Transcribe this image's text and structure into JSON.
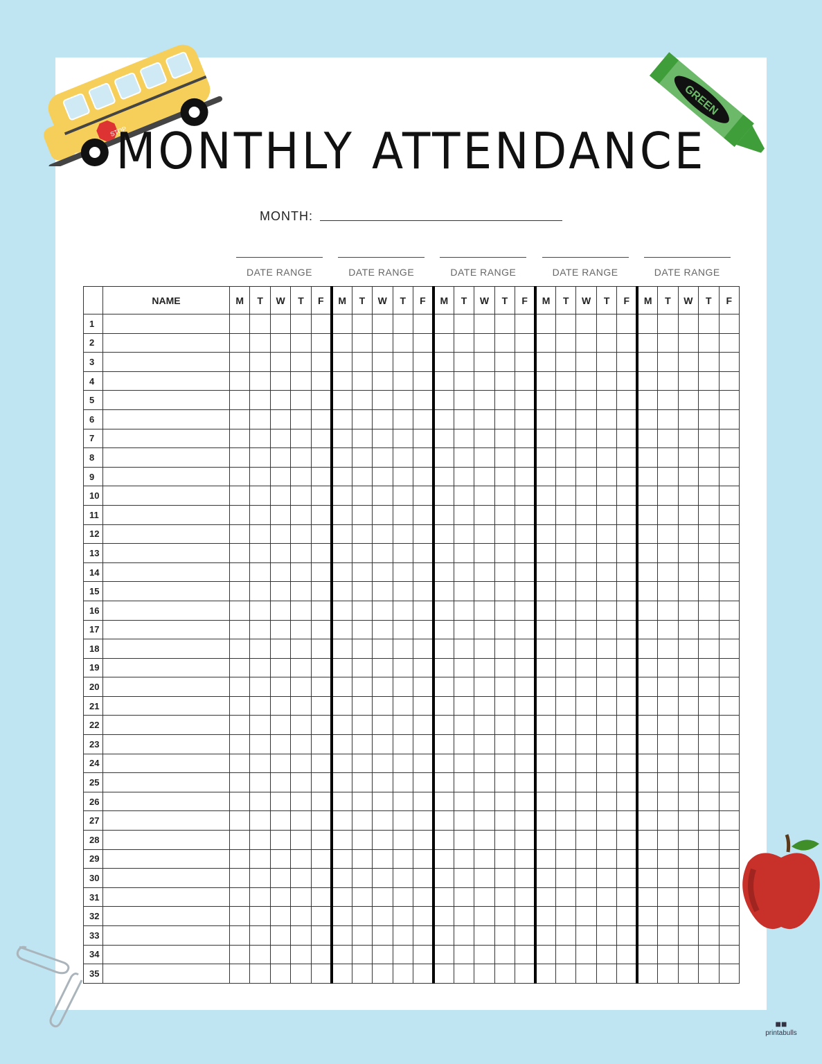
{
  "title": "MONTHLY ATTENDANCE",
  "month_label": "MONTH:",
  "date_range_label": "DATE RANGE",
  "weeks": 5,
  "header": {
    "number": "",
    "name": "NAME",
    "days": [
      "M",
      "T",
      "W",
      "T",
      "F"
    ]
  },
  "rows": [
    1,
    2,
    3,
    4,
    5,
    6,
    7,
    8,
    9,
    10,
    11,
    12,
    13,
    14,
    15,
    16,
    17,
    18,
    19,
    20,
    21,
    22,
    23,
    24,
    25,
    26,
    27,
    28,
    29,
    30,
    31,
    32,
    33,
    34,
    35
  ],
  "decorations": {
    "bus_sign": "STOP",
    "crayon_label": "GREEN",
    "logo": "printabulls"
  },
  "colors": {
    "background": "#bfe4f2",
    "bus": "#f6ce5a",
    "crayon": "#3f9e3a",
    "apple": "#c8302a"
  }
}
